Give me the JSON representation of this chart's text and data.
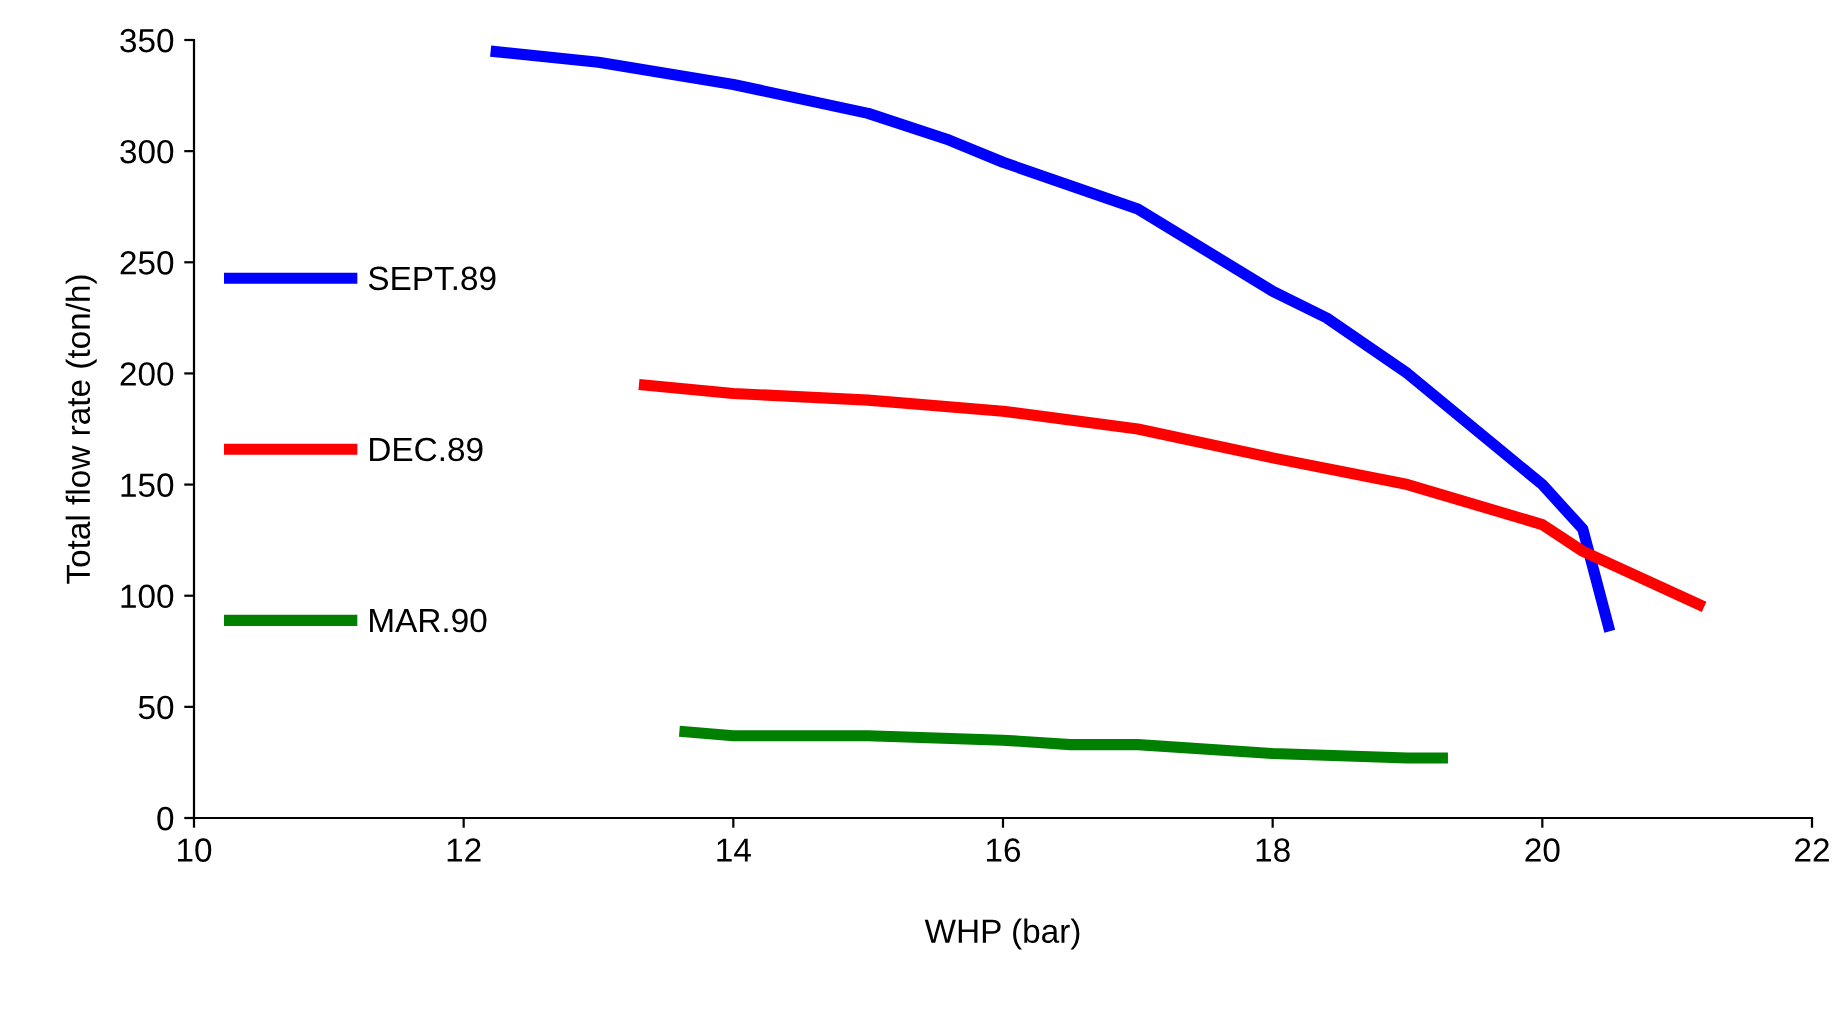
{
  "chart_data": {
    "type": "line",
    "xlabel": "WHP (bar)",
    "ylabel": "Total flow rate (ton/h)",
    "xlim": [
      10,
      22
    ],
    "xticks": [
      10,
      12,
      14,
      16,
      18,
      20,
      22
    ],
    "ylim": [
      0,
      350
    ],
    "yticks": [
      0,
      50,
      100,
      150,
      200,
      250,
      300,
      350
    ],
    "grid": false,
    "legend": "left",
    "marker": "none",
    "line_style": "solid",
    "series": [
      {
        "name": "SEPT.89",
        "color": "#0000ff",
        "x": [
          12.2,
          13,
          14,
          15,
          15.6,
          16,
          17,
          18,
          18.4,
          19,
          20,
          20.3,
          20.5
        ],
        "values": [
          345,
          340,
          330,
          317,
          305,
          295,
          274,
          237,
          225,
          200,
          150,
          130,
          84
        ]
      },
      {
        "name": "DEC.89",
        "color": "#ff0000",
        "x": [
          13.3,
          14,
          15,
          16,
          17,
          18,
          19,
          20,
          20.3,
          21.2
        ],
        "values": [
          195,
          191,
          188,
          183,
          175,
          162,
          150,
          132,
          120,
          95
        ]
      },
      {
        "name": "MAR.90",
        "color": "#008000",
        "x": [
          13.6,
          14,
          15,
          16,
          16.5,
          17,
          18,
          19,
          19.3
        ],
        "values": [
          39,
          37,
          37,
          35,
          33,
          33,
          29,
          27,
          27
        ]
      }
    ]
  }
}
